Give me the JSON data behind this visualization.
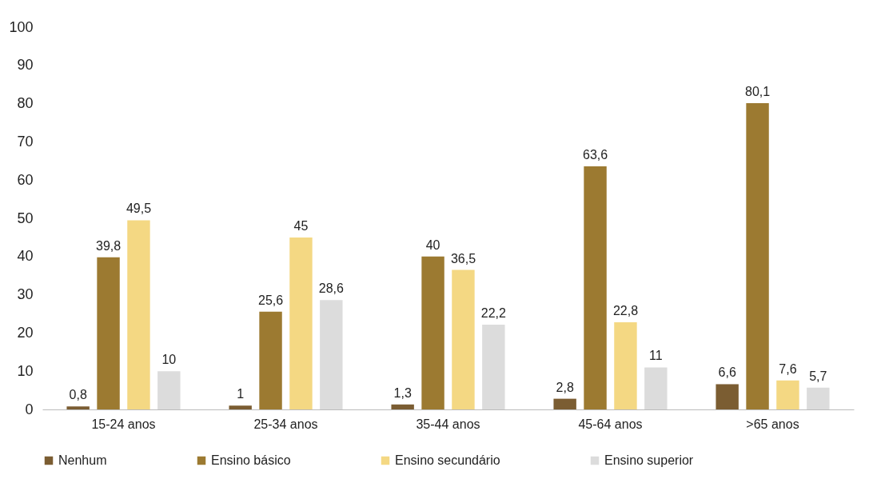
{
  "chart_data": {
    "type": "bar",
    "categories": [
      "15-24 anos",
      "25-34 anos",
      "35-44 anos",
      "45-64 anos",
      ">65 anos"
    ],
    "series": [
      {
        "name": "Nenhum",
        "color": "#7b5d32",
        "values": [
          0.8,
          1,
          1.3,
          2.8,
          6.6
        ],
        "value_labels": [
          "0,8",
          "1",
          "1,3",
          "2,8",
          "6,6"
        ]
      },
      {
        "name": "Ensino básico",
        "color": "#9c7a31",
        "values": [
          39.8,
          25.6,
          40,
          63.6,
          80.1
        ],
        "value_labels": [
          "39,8",
          "25,6",
          "40",
          "63,6",
          "80,1"
        ]
      },
      {
        "name": "Ensino secundário",
        "color": "#f4d883",
        "values": [
          49.5,
          45,
          36.5,
          22.8,
          7.6
        ],
        "value_labels": [
          "49,5",
          "45",
          "36,5",
          "22,8",
          "7,6"
        ]
      },
      {
        "name": "Ensino superior",
        "color": "#dcdcdc",
        "values": [
          10,
          28.6,
          22.2,
          11,
          5.7
        ],
        "value_labels": [
          "10",
          "28,6",
          "22,2",
          "11",
          "5,7"
        ]
      }
    ],
    "ylim": [
      0,
      100
    ],
    "yticks": [
      0,
      10,
      20,
      30,
      40,
      50,
      60,
      70,
      80,
      90,
      100
    ],
    "grid": false,
    "legend": "bottom"
  }
}
